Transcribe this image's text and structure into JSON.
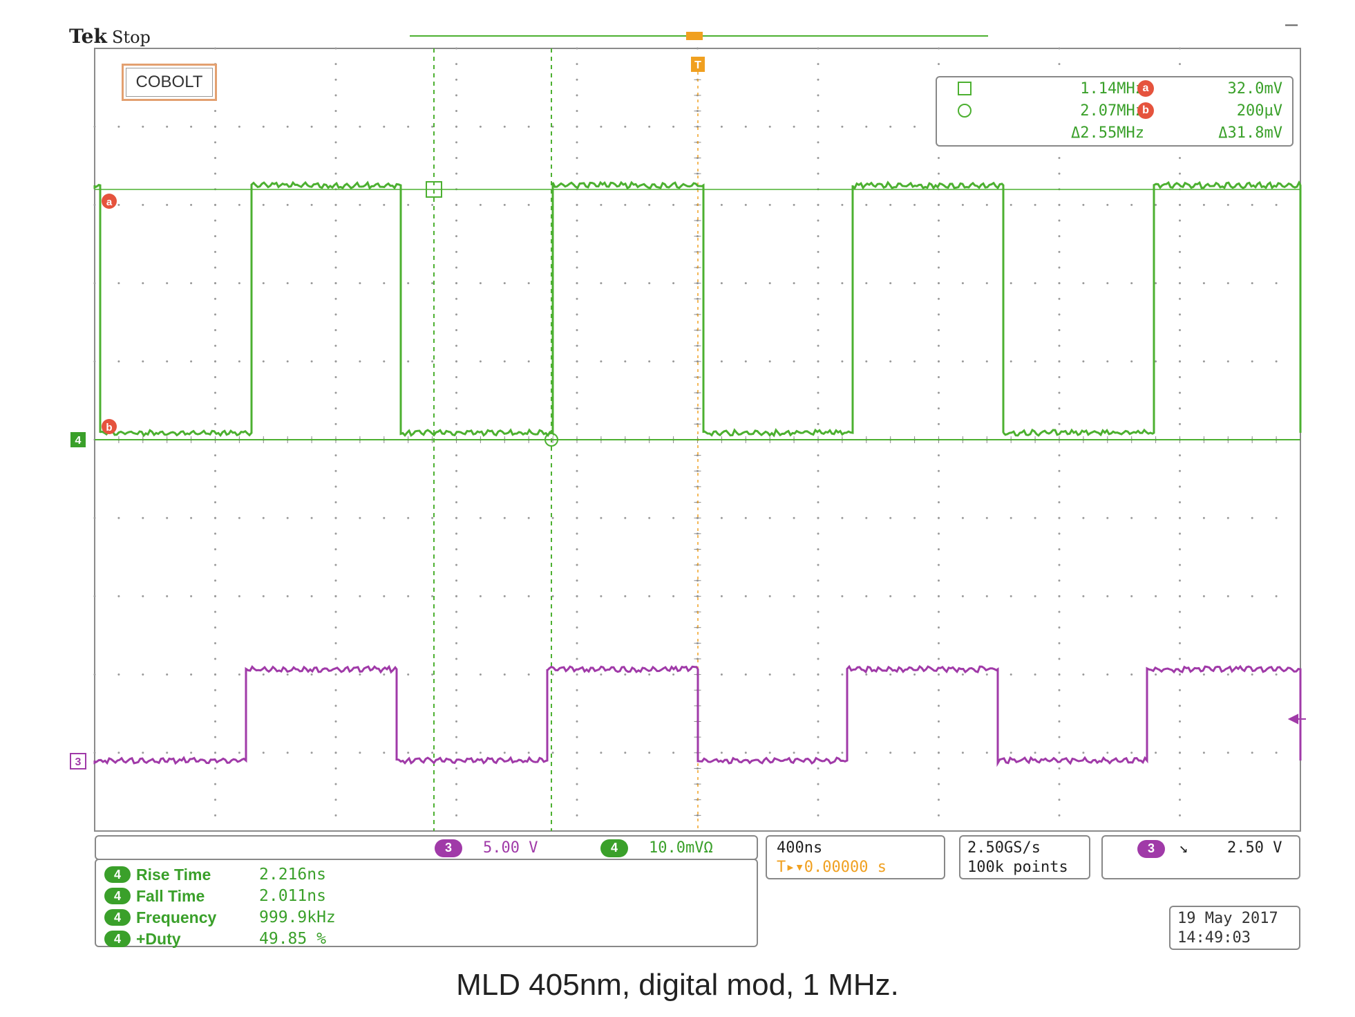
{
  "header": {
    "brand": "Tek",
    "state": "Stop",
    "minimize_symbol": "—"
  },
  "logo_text": "COBOLT",
  "trigger_marker": "T",
  "cursors": {
    "rows": [
      {
        "shape": "square-icon",
        "freq": "1.14MHz",
        "marker": "a",
        "level": "32.0mV"
      },
      {
        "shape": "circle-icon",
        "freq": "2.07MHz",
        "marker": "b",
        "level": "200µV"
      }
    ],
    "delta_freq": "Δ2.55MHz",
    "delta_level": "Δ31.8mV"
  },
  "markers": {
    "a": "a",
    "b": "b",
    "ch4": "4",
    "ch3": "3"
  },
  "channels": {
    "ch3": {
      "num": "3",
      "scale": "5.00 V",
      "color": "#a03aa8"
    },
    "ch4": {
      "num": "4",
      "scale": "10.0mVΩ",
      "color": "#3aa02a"
    }
  },
  "timebase": {
    "scale": "400ns",
    "position": "T▸▾0.00000 s"
  },
  "acquisition": {
    "rate": "2.50GS/s",
    "points": "100k points"
  },
  "trigger": {
    "channel": "3",
    "slope": "↘",
    "level": "2.50 V"
  },
  "measurements": [
    {
      "ch": "4",
      "label": "Rise Time",
      "value": "2.216ns"
    },
    {
      "ch": "4",
      "label": "Fall Time",
      "value": "2.011ns"
    },
    {
      "ch": "4",
      "label": "Frequency",
      "value": "999.9kHz"
    },
    {
      "ch": "4",
      "label": "+Duty",
      "value": "49.85 %"
    }
  ],
  "datetime": {
    "date": "19 May 2017",
    "time": "14:49:03"
  },
  "caption": "MLD 405nm, digital mod, 1 MHz.",
  "colors": {
    "green": "#4cb030",
    "purple": "#a03aa8",
    "orange": "#f0a020",
    "red": "#e5533d"
  }
}
